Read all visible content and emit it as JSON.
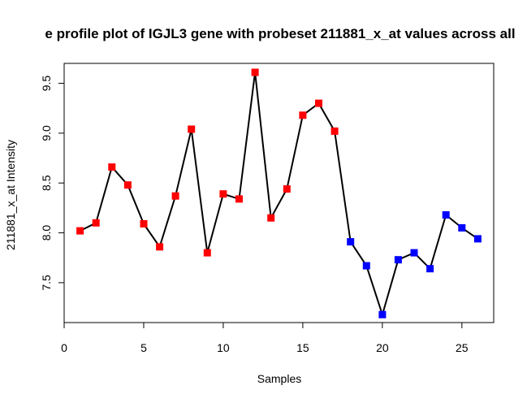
{
  "chart_data": {
    "type": "line",
    "title": "e profile plot of IGJL3 gene with probeset 211881_x_at values across all",
    "xlabel": "Samples",
    "ylabel": "211881_x_at Intensity",
    "xlim": [
      0,
      27
    ],
    "ylim": [
      7.1,
      9.7
    ],
    "xticks": [
      "0",
      "5",
      "10",
      "15",
      "20",
      "25"
    ],
    "xtick_values": [
      0,
      5,
      10,
      15,
      20,
      25
    ],
    "yticks": [
      "7.5",
      "8.0",
      "8.5",
      "9.0",
      "9.5"
    ],
    "ytick_values": [
      7.5,
      8.0,
      8.5,
      9.0,
      9.5
    ],
    "grid": false,
    "line_color": "#000000",
    "marker_shape": "square",
    "series": [
      {
        "x": [
          1,
          2,
          3,
          4,
          5,
          6,
          7,
          8,
          9,
          10,
          11,
          12,
          13,
          14,
          15,
          16,
          17,
          18,
          19,
          20,
          21,
          22,
          23,
          24,
          25,
          26
        ],
        "values": [
          8.02,
          8.1,
          8.66,
          8.48,
          8.09,
          7.86,
          8.37,
          9.04,
          7.8,
          8.39,
          8.34,
          9.61,
          8.15,
          8.44,
          9.18,
          9.3,
          9.02,
          7.91,
          7.67,
          7.18,
          7.73,
          7.8,
          7.64,
          8.18,
          8.05,
          7.94
        ],
        "colors": [
          "#ff0000",
          "#ff0000",
          "#ff0000",
          "#ff0000",
          "#ff0000",
          "#ff0000",
          "#ff0000",
          "#ff0000",
          "#ff0000",
          "#ff0000",
          "#ff0000",
          "#ff0000",
          "#ff0000",
          "#ff0000",
          "#ff0000",
          "#ff0000",
          "#ff0000",
          "#0000ff",
          "#0000ff",
          "#0000ff",
          "#0000ff",
          "#0000ff",
          "#0000ff",
          "#0000ff",
          "#0000ff",
          "#0000ff"
        ]
      }
    ]
  }
}
